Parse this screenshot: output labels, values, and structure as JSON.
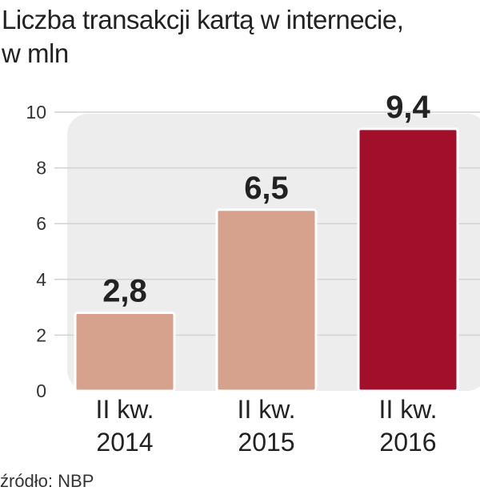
{
  "title": {
    "line1": "Liczba transakcji kartą w internecie,",
    "line2": "w mln"
  },
  "source": "źródło: NBP",
  "colors": {
    "plot_background": "#ededed",
    "gridline": "#d2d2d2",
    "bar_default": "#d6a28d",
    "bar_highlight": "#a10f2b"
  },
  "chart_data": {
    "type": "bar",
    "title": "Liczba transakcji kartą w internecie, w mln",
    "categories": [
      [
        "II kw.",
        "2014"
      ],
      [
        "II kw.",
        "2015"
      ],
      [
        "II kw.",
        "2016"
      ]
    ],
    "values": [
      2.8,
      6.5,
      9.4
    ],
    "value_labels": [
      "2,8",
      "6,5",
      "9,4"
    ],
    "highlight": [
      false,
      false,
      true
    ],
    "ylim": [
      0,
      10
    ],
    "yticks": [
      0,
      2,
      4,
      6,
      8,
      10
    ],
    "grid": true,
    "xlabel": "",
    "ylabel": ""
  }
}
